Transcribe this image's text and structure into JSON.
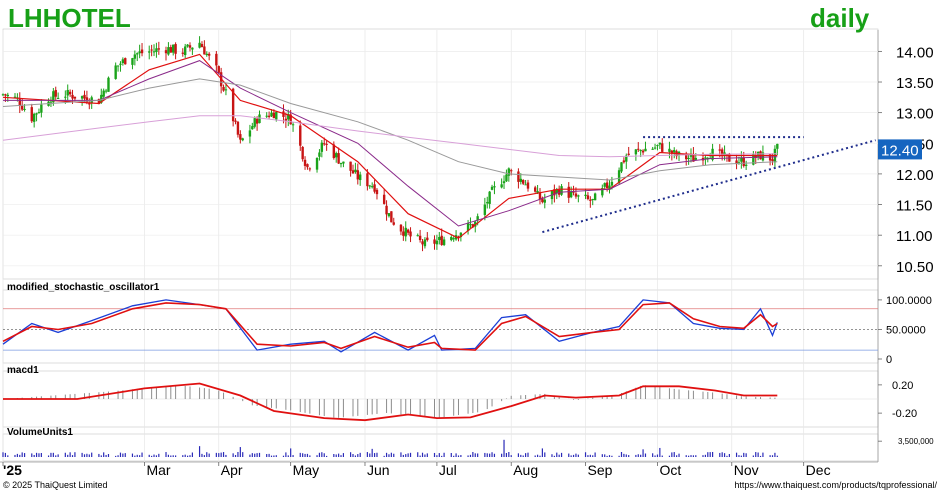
{
  "header": {
    "symbol": "LHHOTEL",
    "interval": "daily"
  },
  "footer": {
    "copyright": "© 2025 ThaiQuest Limited",
    "url": "https://www.thaiquest.com/products/tqprofessional/"
  },
  "colors": {
    "title_green": "#17a017",
    "up_candle": "#1aa31a",
    "down_candle": "#c81414",
    "sma_fast": "#e01010",
    "sma_mid": "#8a2a8a",
    "sma_slow": "#999999",
    "sma_long": "#d8a0d8",
    "trendline": "#1f2d8c",
    "last_price_tag": "#1565c0",
    "stoch_k": "#1c3fd6",
    "stoch_d": "#e01010",
    "macd_line": "#e01010",
    "macd_hist": "#8c8c8c",
    "volume_bar": "#2a2ab8"
  },
  "chart_data": [
    {
      "panel": "price",
      "type": "candlestick",
      "title": "LHHOTEL",
      "subtitle": "daily",
      "ylim": [
        10.35,
        14.3
      ],
      "yticks": [
        "14.00",
        "13.50",
        "13.00",
        "12.50",
        "12.00",
        "11.50",
        "11.00",
        "10.50"
      ],
      "last_price": "12.40",
      "grid": true,
      "close_points": [
        [
          "2025-01-01",
          13.3
        ],
        [
          "2025-01-07",
          13.22
        ],
        [
          "2025-01-13",
          12.92
        ],
        [
          "2025-01-20",
          13.25
        ],
        [
          "2025-01-27",
          13.3
        ],
        [
          "2025-02-03",
          13.25
        ],
        [
          "2025-02-10",
          13.2
        ],
        [
          "2025-02-17",
          13.75
        ],
        [
          "2025-02-24",
          13.95
        ],
        [
          "2025-03-03",
          14.0
        ],
        [
          "2025-03-10",
          14.05
        ],
        [
          "2025-03-17",
          14.0
        ],
        [
          "2025-03-24",
          14.15
        ],
        [
          "2025-03-31",
          13.7
        ],
        [
          "2025-04-04",
          13.3
        ],
        [
          "2025-04-10",
          12.5
        ],
        [
          "2025-04-17",
          12.9
        ],
        [
          "2025-04-24",
          13.0
        ],
        [
          "2025-05-01",
          12.9
        ],
        [
          "2025-05-08",
          12.1
        ],
        [
          "2025-05-15",
          12.5
        ],
        [
          "2025-05-22",
          12.2
        ],
        [
          "2025-05-29",
          11.95
        ],
        [
          "2025-06-05",
          11.8
        ],
        [
          "2025-06-12",
          11.25
        ],
        [
          "2025-06-19",
          11.0
        ],
        [
          "2025-06-26",
          10.85
        ],
        [
          "2025-07-03",
          10.92
        ],
        [
          "2025-07-10",
          11.05
        ],
        [
          "2025-07-17",
          11.2
        ],
        [
          "2025-07-24",
          11.7
        ],
        [
          "2025-07-31",
          12.05
        ],
        [
          "2025-08-07",
          11.85
        ],
        [
          "2025-08-14",
          11.55
        ],
        [
          "2025-08-21",
          11.75
        ],
        [
          "2025-08-28",
          11.62
        ],
        [
          "2025-09-04",
          11.55
        ],
        [
          "2025-09-11",
          11.85
        ],
        [
          "2025-09-18",
          12.3
        ],
        [
          "2025-09-25",
          12.4
        ],
        [
          "2025-10-02",
          12.45
        ],
        [
          "2025-10-09",
          12.3
        ],
        [
          "2025-10-16",
          12.25
        ],
        [
          "2025-10-23",
          12.35
        ],
        [
          "2025-10-30",
          12.25
        ],
        [
          "2025-11-06",
          12.2
        ],
        [
          "2025-11-13",
          12.3
        ],
        [
          "2025-11-18",
          12.25
        ],
        [
          "2025-11-20",
          12.4
        ]
      ],
      "moving_averages": [
        {
          "kind": "fast",
          "points": [
            [
              "2025-01-01",
              13.25
            ],
            [
              "2025-02-10",
              13.15
            ],
            [
              "2025-03-03",
              13.7
            ],
            [
              "2025-03-24",
              13.95
            ],
            [
              "2025-04-10",
              13.2
            ],
            [
              "2025-05-01",
              12.95
            ],
            [
              "2025-05-29",
              12.2
            ],
            [
              "2025-06-19",
              11.35
            ],
            [
              "2025-07-10",
              10.95
            ],
            [
              "2025-07-31",
              11.6
            ],
            [
              "2025-08-21",
              11.75
            ],
            [
              "2025-09-11",
              11.75
            ],
            [
              "2025-10-02",
              12.35
            ],
            [
              "2025-10-23",
              12.3
            ],
            [
              "2025-11-20",
              12.3
            ]
          ]
        },
        {
          "kind": "mid",
          "points": [
            [
              "2025-01-01",
              13.2
            ],
            [
              "2025-02-10",
              13.2
            ],
            [
              "2025-03-03",
              13.55
            ],
            [
              "2025-03-24",
              13.85
            ],
            [
              "2025-04-10",
              13.4
            ],
            [
              "2025-05-01",
              13.0
            ],
            [
              "2025-05-29",
              12.5
            ],
            [
              "2025-06-19",
              11.8
            ],
            [
              "2025-07-10",
              11.15
            ],
            [
              "2025-07-31",
              11.4
            ],
            [
              "2025-08-21",
              11.7
            ],
            [
              "2025-09-11",
              11.75
            ],
            [
              "2025-10-02",
              12.15
            ],
            [
              "2025-10-23",
              12.25
            ],
            [
              "2025-11-20",
              12.28
            ]
          ]
        },
        {
          "kind": "slow",
          "points": [
            [
              "2025-01-01",
              13.1
            ],
            [
              "2025-02-10",
              13.2
            ],
            [
              "2025-03-03",
              13.4
            ],
            [
              "2025-03-24",
              13.55
            ],
            [
              "2025-04-10",
              13.45
            ],
            [
              "2025-05-01",
              13.15
            ],
            [
              "2025-05-29",
              12.85
            ],
            [
              "2025-06-19",
              12.55
            ],
            [
              "2025-07-10",
              12.2
            ],
            [
              "2025-07-31",
              12.0
            ],
            [
              "2025-08-21",
              11.95
            ],
            [
              "2025-09-11",
              11.9
            ],
            [
              "2025-10-02",
              12.05
            ],
            [
              "2025-10-23",
              12.15
            ],
            [
              "2025-11-20",
              12.2
            ]
          ]
        },
        {
          "kind": "long",
          "points": [
            [
              "2025-01-01",
              12.55
            ],
            [
              "2025-02-10",
              12.75
            ],
            [
              "2025-03-03",
              12.85
            ],
            [
              "2025-03-24",
              12.95
            ],
            [
              "2025-04-10",
              12.95
            ],
            [
              "2025-05-01",
              12.85
            ],
            [
              "2025-05-29",
              12.7
            ],
            [
              "2025-06-19",
              12.6
            ],
            [
              "2025-07-10",
              12.5
            ],
            [
              "2025-07-31",
              12.4
            ],
            [
              "2025-08-21",
              12.3
            ],
            [
              "2025-09-11",
              12.28
            ],
            [
              "2025-10-02",
              12.3
            ],
            [
              "2025-10-23",
              12.32
            ],
            [
              "2025-11-20",
              12.33
            ]
          ]
        }
      ],
      "annotations": [
        {
          "kind": "resistance",
          "style": "dotted",
          "from": [
            "2025-09-25",
            12.6
          ],
          "to": [
            "2025-12-01",
            12.6
          ]
        },
        {
          "kind": "support",
          "style": "dotted",
          "from": [
            "2025-08-14",
            11.05
          ],
          "to": [
            "2025-12-31",
            12.55
          ]
        }
      ]
    },
    {
      "panel": "stochastic",
      "type": "line",
      "title": "modified_stochastic_oscillator1",
      "ylim": [
        0,
        110
      ],
      "yticks": [
        "100.0000",
        "50.0000",
        "0"
      ],
      "reference_lines": [
        85,
        50,
        15
      ],
      "series": [
        {
          "kind": "k",
          "points": [
            [
              "2025-01-01",
              25
            ],
            [
              "2025-01-13",
              60
            ],
            [
              "2025-01-24",
              45
            ],
            [
              "2025-02-07",
              65
            ],
            [
              "2025-02-24",
              90
            ],
            [
              "2025-03-10",
              100
            ],
            [
              "2025-03-24",
              92
            ],
            [
              "2025-04-04",
              85
            ],
            [
              "2025-04-17",
              15
            ],
            [
              "2025-05-01",
              25
            ],
            [
              "2025-05-15",
              30
            ],
            [
              "2025-05-22",
              12
            ],
            [
              "2025-06-05",
              45
            ],
            [
              "2025-06-19",
              15
            ],
            [
              "2025-06-30",
              40
            ],
            [
              "2025-07-03",
              15
            ],
            [
              "2025-07-17",
              18
            ],
            [
              "2025-07-28",
              70
            ],
            [
              "2025-08-07",
              75
            ],
            [
              "2025-08-21",
              30
            ],
            [
              "2025-09-04",
              45
            ],
            [
              "2025-09-15",
              55
            ],
            [
              "2025-09-25",
              100
            ],
            [
              "2025-10-06",
              95
            ],
            [
              "2025-10-16",
              60
            ],
            [
              "2025-10-27",
              52
            ],
            [
              "2025-11-06",
              50
            ],
            [
              "2025-11-13",
              85
            ],
            [
              "2025-11-18",
              40
            ],
            [
              "2025-11-20",
              62
            ]
          ]
        },
        {
          "kind": "d",
          "points": [
            [
              "2025-01-01",
              30
            ],
            [
              "2025-01-13",
              55
            ],
            [
              "2025-01-24",
              50
            ],
            [
              "2025-02-07",
              60
            ],
            [
              "2025-02-24",
              85
            ],
            [
              "2025-03-10",
              95
            ],
            [
              "2025-03-24",
              92
            ],
            [
              "2025-04-04",
              85
            ],
            [
              "2025-04-17",
              25
            ],
            [
              "2025-05-01",
              22
            ],
            [
              "2025-05-15",
              28
            ],
            [
              "2025-05-22",
              18
            ],
            [
              "2025-06-05",
              38
            ],
            [
              "2025-06-19",
              20
            ],
            [
              "2025-06-30",
              28
            ],
            [
              "2025-07-03",
              18
            ],
            [
              "2025-07-17",
              15
            ],
            [
              "2025-07-28",
              60
            ],
            [
              "2025-08-07",
              72
            ],
            [
              "2025-08-21",
              38
            ],
            [
              "2025-09-04",
              45
            ],
            [
              "2025-09-15",
              50
            ],
            [
              "2025-09-25",
              92
            ],
            [
              "2025-10-06",
              95
            ],
            [
              "2025-10-16",
              68
            ],
            [
              "2025-10-27",
              55
            ],
            [
              "2025-11-06",
              52
            ],
            [
              "2025-11-13",
              75
            ],
            [
              "2025-11-18",
              55
            ],
            [
              "2025-11-20",
              60
            ]
          ]
        }
      ]
    },
    {
      "panel": "macd",
      "type": "line",
      "title": "macd1",
      "ylim": [
        -0.34,
        0.34
      ],
      "yticks": [
        "0.20",
        "-0.20"
      ],
      "series": [
        {
          "kind": "macd",
          "points": [
            [
              "2025-01-01",
              0.0
            ],
            [
              "2025-02-01",
              0.0
            ],
            [
              "2025-03-01",
              0.15
            ],
            [
              "2025-03-24",
              0.22
            ],
            [
              "2025-04-10",
              0.05
            ],
            [
              "2025-04-24",
              -0.17
            ],
            [
              "2025-05-15",
              -0.27
            ],
            [
              "2025-06-01",
              -0.3
            ],
            [
              "2025-06-19",
              -0.22
            ],
            [
              "2025-07-01",
              -0.27
            ],
            [
              "2025-07-15",
              -0.26
            ],
            [
              "2025-08-01",
              -0.1
            ],
            [
              "2025-08-15",
              0.05
            ],
            [
              "2025-08-28",
              0.02
            ],
            [
              "2025-09-15",
              0.05
            ],
            [
              "2025-09-25",
              0.18
            ],
            [
              "2025-10-10",
              0.18
            ],
            [
              "2025-10-25",
              0.12
            ],
            [
              "2025-11-06",
              0.05
            ],
            [
              "2025-11-20",
              0.05
            ]
          ]
        }
      ],
      "histogram_points": [
        [
          "2025-01-01",
          0.0
        ],
        [
          "2025-02-15",
          0.12
        ],
        [
          "2025-03-15",
          0.22
        ],
        [
          "2025-03-31",
          0.15
        ],
        [
          "2025-04-15",
          -0.1
        ],
        [
          "2025-05-01",
          -0.18
        ],
        [
          "2025-05-20",
          -0.3
        ],
        [
          "2025-06-10",
          -0.22
        ],
        [
          "2025-07-01",
          -0.3
        ],
        [
          "2025-07-20",
          -0.2
        ],
        [
          "2025-08-01",
          0.05
        ],
        [
          "2025-08-15",
          0.08
        ],
        [
          "2025-08-28",
          -0.02
        ],
        [
          "2025-09-15",
          0.08
        ],
        [
          "2025-09-25",
          0.22
        ],
        [
          "2025-10-10",
          0.15
        ],
        [
          "2025-10-25",
          0.1
        ],
        [
          "2025-11-06",
          0.04
        ],
        [
          "2025-11-20",
          0.02
        ]
      ]
    },
    {
      "panel": "volume",
      "type": "bar",
      "title": "VolumeUnits1",
      "yticks": [
        "3,500,000"
      ],
      "ylim": [
        0,
        4200000
      ],
      "reference_level": 3500000,
      "spikes": [
        [
          "2025-03-24",
          2400000
        ],
        [
          "2025-04-10",
          2200000
        ],
        [
          "2025-05-01",
          1900000
        ],
        [
          "2025-06-04",
          1800000
        ],
        [
          "2025-07-29",
          3800000
        ],
        [
          "2025-08-14",
          1900000
        ],
        [
          "2025-09-25",
          1700000
        ],
        [
          "2025-10-02",
          2000000
        ]
      ],
      "typical_daily": 800000
    }
  ],
  "x_axis": {
    "labels": [
      "'25",
      "Mar",
      "Apr",
      "May",
      "Jun",
      "Jul",
      "Aug",
      "Sep",
      "Oct",
      "Nov",
      "Dec"
    ],
    "label_dates": [
      "2025-01-01",
      "2025-03-01",
      "2025-04-01",
      "2025-05-01",
      "2025-06-01",
      "2025-07-01",
      "2025-08-01",
      "2025-09-01",
      "2025-10-01",
      "2025-11-01",
      "2025-12-01"
    ],
    "start_date": "2025-01-01",
    "end_date": "2025-12-31"
  }
}
